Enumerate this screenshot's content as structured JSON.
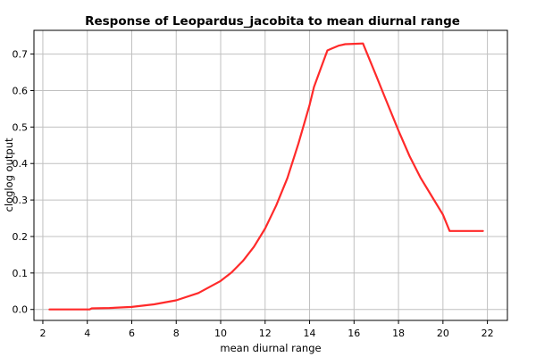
{
  "chart_data": {
    "type": "line",
    "title": "Response of Leopardus_jacobita to mean diurnal range",
    "xlabel": "mean diurnal range",
    "ylabel": "cloglog output",
    "xlim": [
      1.6,
      22.9
    ],
    "ylim": [
      -0.03,
      0.765
    ],
    "x_ticks": [
      2,
      4,
      6,
      8,
      10,
      12,
      14,
      16,
      18,
      20,
      22
    ],
    "y_ticks": [
      0.0,
      0.1,
      0.2,
      0.3,
      0.4,
      0.5,
      0.6,
      0.7
    ],
    "y_tick_labels": [
      "0.0",
      "0.1",
      "0.2",
      "0.3",
      "0.4",
      "0.5",
      "0.6",
      "0.7"
    ],
    "grid": true,
    "series_color": "#ff2a2a",
    "series": [
      {
        "x": [
          2.3,
          4.1,
          4.2,
          5.0,
          6.0,
          7.0,
          8.0,
          9.0,
          10.0,
          10.5,
          11.0,
          11.5,
          12.0,
          12.5,
          13.0,
          13.5,
          14.0,
          14.2,
          14.5,
          14.8,
          15.0,
          15.3,
          15.6,
          16.0,
          16.4,
          17.0,
          17.4,
          18.0,
          18.5,
          19.0,
          19.5,
          20.0,
          20.3,
          21.0,
          21.8
        ],
        "y": [
          0.0,
          0.0,
          0.003,
          0.004,
          0.007,
          0.014,
          0.025,
          0.045,
          0.078,
          0.102,
          0.133,
          0.172,
          0.222,
          0.285,
          0.36,
          0.455,
          0.56,
          0.61,
          0.66,
          0.71,
          0.715,
          0.723,
          0.727,
          0.728,
          0.729,
          0.64,
          0.58,
          0.49,
          0.42,
          0.36,
          0.31,
          0.26,
          0.215,
          0.215,
          0.215
        ]
      }
    ]
  }
}
